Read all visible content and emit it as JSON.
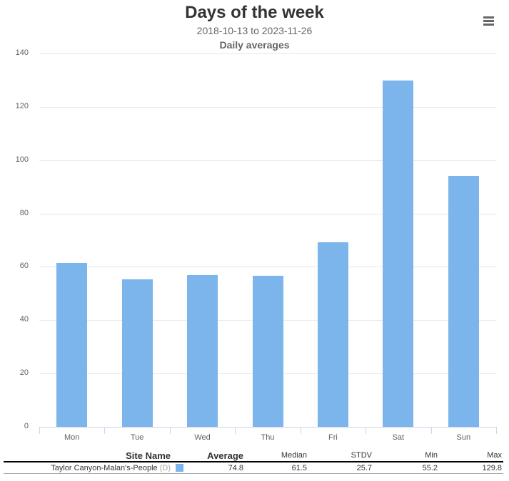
{
  "header": {
    "title": "Days of the week",
    "date_range": "2018-10-13 to 2023-11-26",
    "subtitle": "Daily averages",
    "menu_icon": "hamburger-menu-icon"
  },
  "colors": {
    "bar": "#7cb5ec",
    "grid": "#e6e6e6",
    "title": "#333333"
  },
  "chart_data": {
    "type": "bar",
    "title": "Days of the week",
    "subtitle": "2018-10-13 to 2023-11-26 — Daily averages",
    "categories": [
      "Mon",
      "Tue",
      "Wed",
      "Thu",
      "Fri",
      "Sat",
      "Sun"
    ],
    "series": [
      {
        "name": "Taylor Canyon-Malan's-People",
        "values": [
          61.5,
          55.2,
          57.0,
          56.7,
          69.3,
          129.8,
          94.0
        ]
      }
    ],
    "xlabel": "",
    "ylabel": "",
    "ylim": [
      0,
      140
    ],
    "yticks": [
      "0",
      "20",
      "40",
      "60",
      "80",
      "100",
      "120",
      "140"
    ],
    "grid": true,
    "legend": "none"
  },
  "stats_table": {
    "headers": {
      "site_name": "Site Name",
      "average": "Average",
      "median": "Median",
      "stdv": "STDV",
      "min": "Min",
      "max": "Max"
    },
    "rows": [
      {
        "site_name": "Taylor Canyon-Malan's-People",
        "tag": "(D)",
        "average": "74.8",
        "median": "61.5",
        "stdv": "25.7",
        "min": "55.2",
        "max": "129.8"
      }
    ]
  }
}
